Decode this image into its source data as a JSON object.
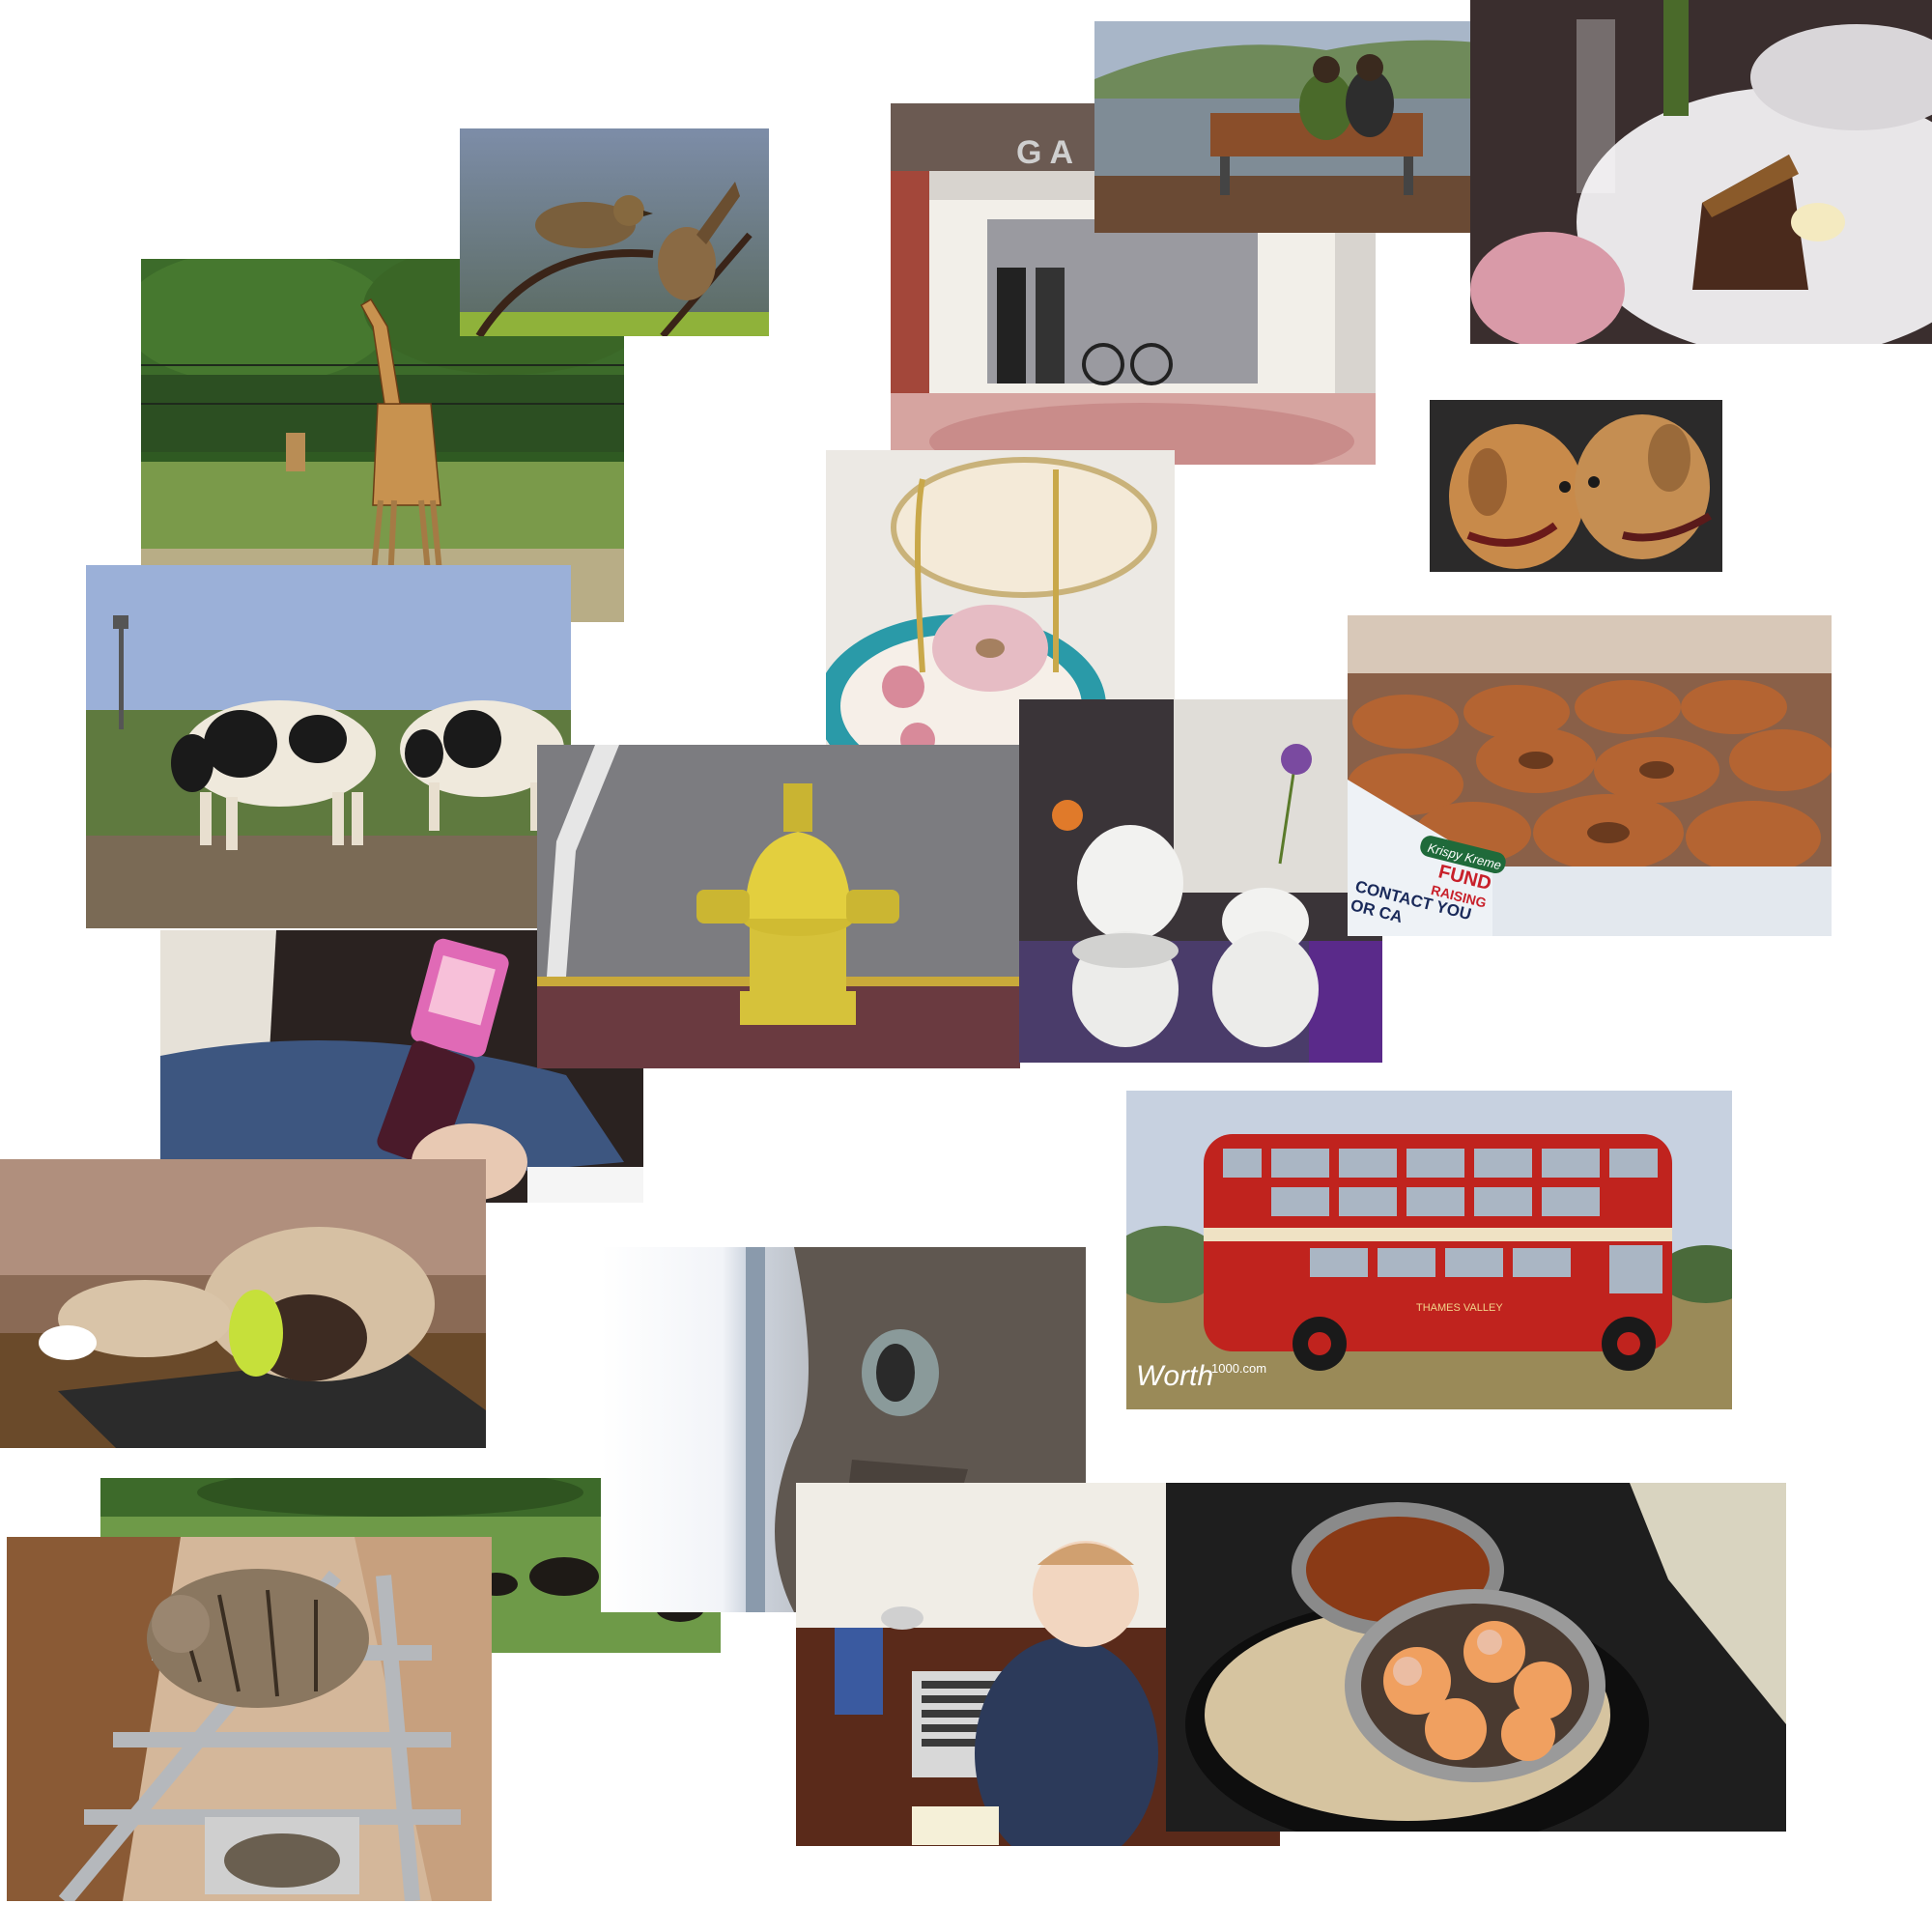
{
  "collage": {
    "background": "#ffffff",
    "photos": [
      {
        "id": "giraffe",
        "subject": "giraffe-icon"
      },
      {
        "id": "birds",
        "subject": "bird-icon"
      },
      {
        "id": "cows",
        "subject": "cow-icon"
      },
      {
        "id": "phone",
        "subject": "phone-icon"
      },
      {
        "id": "cat-table",
        "subject": "cat-icon"
      },
      {
        "id": "cattle-field",
        "subject": "cattle-icon"
      },
      {
        "id": "cat-ladder",
        "subject": "cat-icon"
      },
      {
        "id": "store",
        "subject": "storefront-icon"
      },
      {
        "id": "bench",
        "subject": "bench-icon"
      },
      {
        "id": "dessert",
        "subject": "cake-icon"
      },
      {
        "id": "dogs",
        "subject": "dog-icon"
      },
      {
        "id": "cake-stand",
        "subject": "donut-icon"
      },
      {
        "id": "hydrant",
        "subject": "hydrant-icon"
      },
      {
        "id": "toilets",
        "subject": "toilet-icon"
      },
      {
        "id": "donut-box",
        "subject": "donut-icon"
      },
      {
        "id": "bus",
        "subject": "bus-icon"
      },
      {
        "id": "cat-eye",
        "subject": "cat-icon"
      },
      {
        "id": "baby-computer",
        "subject": "baby-icon"
      },
      {
        "id": "food-bowls",
        "subject": "food-icon"
      }
    ]
  },
  "texts": {
    "store_sign": "GA",
    "donut_box_brand": "Krispy Kreme",
    "donut_box_line1": "FUND",
    "donut_box_line2": "RAISING",
    "donut_box_line3": "CONTACT YOU",
    "donut_box_line4": "OR CA",
    "bus_livery": "THAMES VALLEY",
    "watermark_script": "Worth",
    "watermark_site": "1000.com"
  }
}
